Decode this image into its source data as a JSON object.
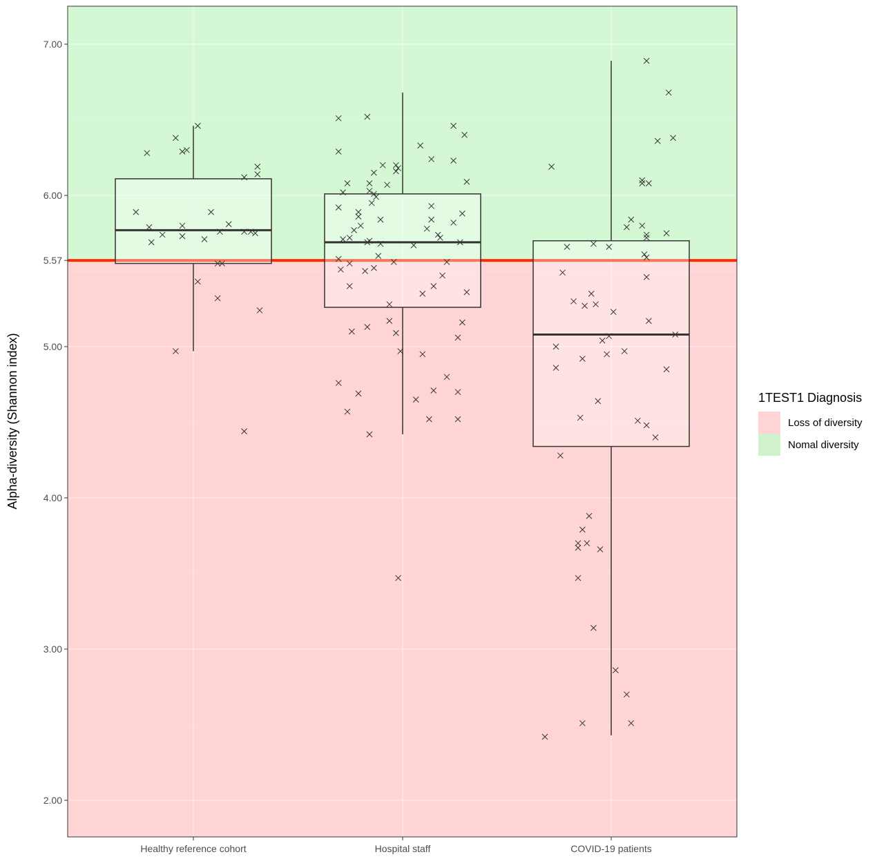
{
  "chart_data": {
    "type": "box",
    "ylabel": "Alpha-diversity (Shannon index)",
    "xlabel": "",
    "categories": [
      "Healthy reference cohort",
      "Hospital staff",
      "COVID-19 patients"
    ],
    "y_ticks": [
      2.0,
      3.0,
      4.0,
      5.0,
      5.57,
      6.0,
      7.0
    ],
    "y_tick_labels": [
      "2.00",
      "3.00",
      "4.00",
      "5.00",
      "5.57",
      "6.00",
      "7.00"
    ],
    "ylim": [
      1.75,
      7.25
    ],
    "threshold": {
      "value": 5.57,
      "color": "#ff2a00"
    },
    "regions": [
      {
        "name": "Loss of diversity",
        "from": 1.75,
        "to": 5.57,
        "color": "#ffd4d4"
      },
      {
        "name": "Nomal diversity",
        "from": 5.57,
        "to": 7.25,
        "color": "#d4f8d4"
      }
    ],
    "legend": {
      "title": "1TEST1 Diagnosis",
      "position": "right",
      "items": [
        {
          "label": "Loss of diversity",
          "color": "#ffd4d4"
        },
        {
          "label": "Nomal diversity",
          "color": "#d0f2cc"
        }
      ]
    },
    "grid": true,
    "boxes": [
      {
        "name": "Healthy reference cohort",
        "whisker_low": 4.97,
        "q1": 5.55,
        "median": 5.77,
        "q3": 6.11,
        "whisker_high": 6.46
      },
      {
        "name": "Hospital staff",
        "whisker_low": 4.42,
        "q1": 5.26,
        "median": 5.69,
        "q3": 6.01,
        "whisker_high": 6.68
      },
      {
        "name": "COVID-19 patients",
        "whisker_low": 2.43,
        "q1": 4.34,
        "median": 5.08,
        "q3": 5.7,
        "whisker_high": 6.89
      }
    ],
    "points": [
      [
        [
          -0.26,
          5.89
        ],
        [
          -0.21,
          6.28
        ],
        [
          -0.2,
          5.79
        ],
        [
          -0.19,
          5.69
        ],
        [
          -0.14,
          5.74
        ],
        [
          -0.08,
          6.38
        ],
        [
          -0.08,
          4.97
        ],
        [
          -0.05,
          5.73
        ],
        [
          -0.05,
          6.29
        ],
        [
          -0.05,
          5.8
        ],
        [
          -0.03,
          6.3
        ],
        [
          0.02,
          6.46
        ],
        [
          0.02,
          5.43
        ],
        [
          0.05,
          5.71
        ],
        [
          0.08,
          5.89
        ],
        [
          0.11,
          5.32
        ],
        [
          0.11,
          5.55
        ],
        [
          0.12,
          5.76
        ],
        [
          0.13,
          5.55
        ],
        [
          0.16,
          5.81
        ],
        [
          0.23,
          6.12
        ],
        [
          0.23,
          5.76
        ],
        [
          0.23,
          4.44
        ],
        [
          0.26,
          5.76
        ],
        [
          0.28,
          5.75
        ],
        [
          0.29,
          6.19
        ],
        [
          0.29,
          6.14
        ],
        [
          0.3,
          5.24
        ]
      ],
      [
        [
          -0.29,
          5.58
        ],
        [
          -0.29,
          6.51
        ],
        [
          -0.29,
          6.29
        ],
        [
          -0.29,
          5.92
        ],
        [
          -0.28,
          5.51
        ],
        [
          -0.29,
          4.76
        ],
        [
          -0.27,
          5.71
        ],
        [
          -0.27,
          6.02
        ],
        [
          -0.25,
          4.57
        ],
        [
          -0.25,
          6.08
        ],
        [
          -0.24,
          5.4
        ],
        [
          -0.24,
          5.72
        ],
        [
          -0.24,
          5.55
        ],
        [
          -0.23,
          5.1
        ],
        [
          -0.22,
          5.77
        ],
        [
          -0.2,
          5.89
        ],
        [
          -0.2,
          5.86
        ],
        [
          -0.2,
          4.69
        ],
        [
          -0.19,
          5.8
        ],
        [
          -0.17,
          5.5
        ],
        [
          -0.16,
          5.13
        ],
        [
          -0.16,
          6.52
        ],
        [
          -0.16,
          5.69
        ],
        [
          -0.15,
          5.7
        ],
        [
          -0.15,
          6.03
        ],
        [
          -0.15,
          6.08
        ],
        [
          -0.15,
          4.42
        ],
        [
          -0.14,
          5.95
        ],
        [
          -0.13,
          6.15
        ],
        [
          -0.13,
          6.01
        ],
        [
          -0.13,
          5.52
        ],
        [
          -0.12,
          5.99
        ],
        [
          -0.11,
          5.6
        ],
        [
          -0.1,
          5.84
        ],
        [
          -0.1,
          5.68
        ],
        [
          -0.09,
          6.2
        ],
        [
          -0.07,
          6.07
        ],
        [
          -0.06,
          5.28
        ],
        [
          -0.06,
          5.17
        ],
        [
          -0.04,
          5.56
        ],
        [
          -0.03,
          5.09
        ],
        [
          -0.03,
          6.16
        ],
        [
          -0.03,
          6.2
        ],
        [
          -0.02,
          6.18
        ],
        [
          -0.02,
          3.47
        ],
        [
          -0.01,
          4.97
        ],
        [
          0.05,
          5.67
        ],
        [
          0.06,
          4.65
        ],
        [
          0.08,
          6.33
        ],
        [
          0.09,
          4.95
        ],
        [
          0.09,
          5.35
        ],
        [
          0.11,
          5.78
        ],
        [
          0.12,
          4.52
        ],
        [
          0.13,
          5.84
        ],
        [
          0.13,
          6.24
        ],
        [
          0.13,
          5.93
        ],
        [
          0.14,
          5.4
        ],
        [
          0.14,
          4.71
        ],
        [
          0.16,
          5.74
        ],
        [
          0.17,
          5.72
        ],
        [
          0.18,
          5.47
        ],
        [
          0.2,
          4.8
        ],
        [
          0.2,
          5.56
        ],
        [
          0.23,
          6.46
        ],
        [
          0.23,
          6.23
        ],
        [
          0.23,
          5.82
        ],
        [
          0.25,
          4.7
        ],
        [
          0.25,
          4.52
        ],
        [
          0.25,
          5.06
        ],
        [
          0.26,
          5.69
        ],
        [
          0.27,
          5.88
        ],
        [
          0.27,
          5.16
        ],
        [
          0.28,
          6.4
        ],
        [
          0.29,
          6.09
        ],
        [
          0.29,
          5.36
        ]
      ],
      [
        [
          -0.3,
          2.42
        ],
        [
          -0.27,
          6.19
        ],
        [
          -0.25,
          5.0
        ],
        [
          -0.25,
          4.86
        ],
        [
          -0.23,
          4.28
        ],
        [
          -0.22,
          5.49
        ],
        [
          -0.2,
          5.66
        ],
        [
          -0.17,
          5.3
        ],
        [
          -0.15,
          3.47
        ],
        [
          -0.15,
          3.7
        ],
        [
          -0.15,
          3.67
        ],
        [
          -0.14,
          4.53
        ],
        [
          -0.13,
          3.79
        ],
        [
          -0.13,
          2.51
        ],
        [
          -0.13,
          4.92
        ],
        [
          -0.12,
          5.27
        ],
        [
          -0.11,
          3.7
        ],
        [
          -0.1,
          3.88
        ],
        [
          -0.09,
          5.35
        ],
        [
          -0.08,
          5.68
        ],
        [
          -0.08,
          3.14
        ],
        [
          -0.07,
          5.28
        ],
        [
          -0.06,
          4.64
        ],
        [
          -0.05,
          3.66
        ],
        [
          -0.04,
          5.04
        ],
        [
          -0.02,
          4.95
        ],
        [
          -0.01,
          5.66
        ],
        [
          -0.01,
          5.07
        ],
        [
          0.01,
          5.23
        ],
        [
          0.02,
          2.86
        ],
        [
          0.06,
          4.97
        ],
        [
          0.07,
          5.79
        ],
        [
          0.07,
          2.7
        ],
        [
          0.09,
          2.51
        ],
        [
          0.09,
          5.84
        ],
        [
          0.12,
          4.51
        ],
        [
          0.14,
          6.08
        ],
        [
          0.14,
          6.1
        ],
        [
          0.14,
          5.8
        ],
        [
          0.15,
          5.61
        ],
        [
          0.16,
          4.48
        ],
        [
          0.16,
          5.74
        ],
        [
          0.16,
          6.89
        ],
        [
          0.16,
          5.59
        ],
        [
          0.16,
          5.46
        ],
        [
          0.16,
          5.72
        ],
        [
          0.17,
          5.17
        ],
        [
          0.17,
          6.08
        ],
        [
          0.2,
          4.4
        ],
        [
          0.21,
          6.36
        ],
        [
          0.25,
          4.85
        ],
        [
          0.25,
          5.75
        ],
        [
          0.26,
          6.68
        ],
        [
          0.28,
          6.38
        ],
        [
          0.29,
          5.08
        ]
      ]
    ]
  }
}
